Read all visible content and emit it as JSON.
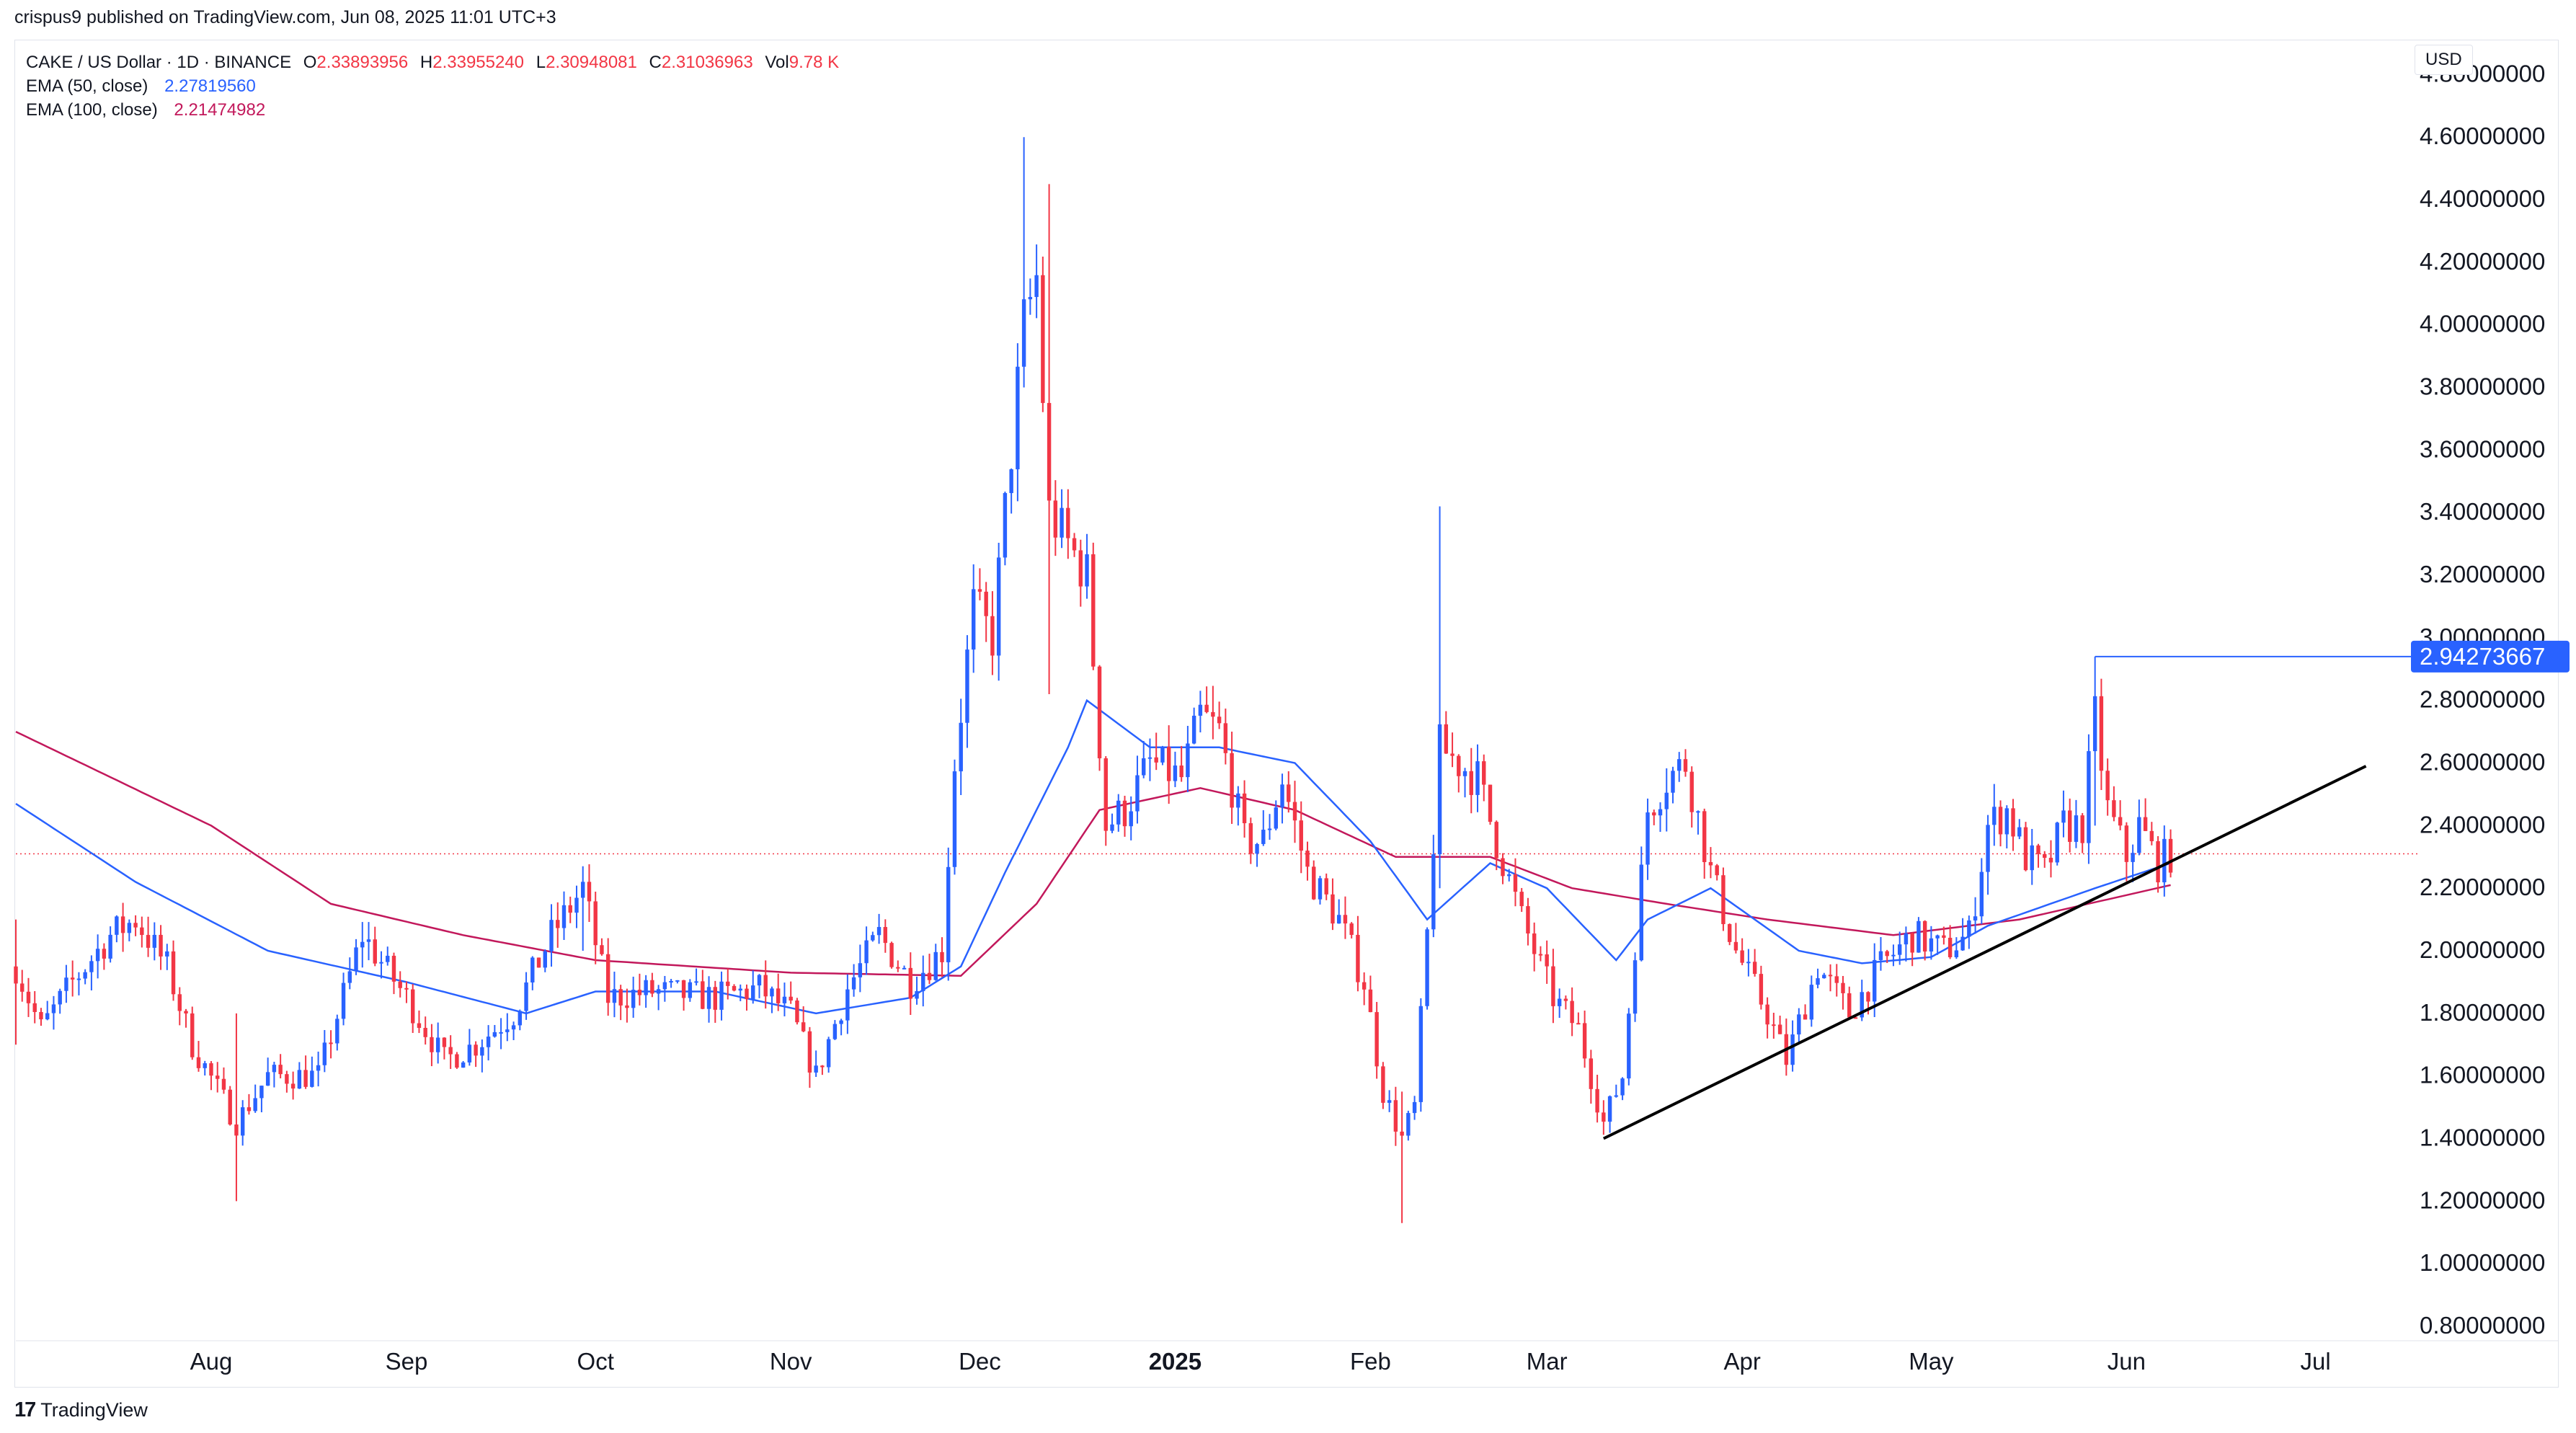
{
  "header": {
    "publish_line": "crispus9 published on TradingView.com, Jun 08, 2025 11:01 UTC+3"
  },
  "legend": {
    "symbol": "CAKE / US Dollar · 1D · BINANCE",
    "ohlc": [
      {
        "key": "O",
        "value": "2.33893956"
      },
      {
        "key": "H",
        "value": "2.33955240"
      },
      {
        "key": "L",
        "value": "2.30948081"
      },
      {
        "key": "C",
        "value": "2.31036963"
      },
      {
        "key": "Vol",
        "value": "9.78 K"
      }
    ],
    "ema50_label": "EMA (50, close)",
    "ema50_value": "2.27819560",
    "ema100_label": "EMA (100, close)",
    "ema100_value": "2.21474982"
  },
  "price_axis": {
    "currency": "USD",
    "current_price_tag": "2.94273667"
  },
  "footer": {
    "logo_mark": "17",
    "logo_text": "TradingView"
  },
  "colors": {
    "up": "#2962ff",
    "down": "#f23645",
    "ema50": "#2962ff",
    "ema100": "#c2185b",
    "trendline": "#000000",
    "price_tag_bg": "#2962ff",
    "last_close_line": "#f23645"
  },
  "chart_data": {
    "type": "candlestick",
    "x_range": [
      "2024-07-01",
      "2025-07-15"
    ],
    "ylim": [
      0.8,
      4.9
    ],
    "y_ticks": [
      "4.80000000",
      "4.60000000",
      "4.40000000",
      "4.20000000",
      "4.00000000",
      "3.80000000",
      "3.60000000",
      "3.40000000",
      "3.20000000",
      "3.00000000",
      "2.80000000",
      "2.60000000",
      "2.40000000",
      "2.20000000",
      "2.00000000",
      "1.80000000",
      "1.60000000",
      "1.40000000",
      "1.20000000",
      "1.00000000",
      "0.80000000"
    ],
    "x_ticks": [
      {
        "label": "Aug",
        "date": "2024-08-01",
        "bold": false
      },
      {
        "label": "Sep",
        "date": "2024-09-01",
        "bold": false
      },
      {
        "label": "Oct",
        "date": "2024-10-01",
        "bold": false
      },
      {
        "label": "Nov",
        "date": "2024-11-01",
        "bold": false
      },
      {
        "label": "Dec",
        "date": "2024-12-01",
        "bold": false
      },
      {
        "label": "2025",
        "date": "2025-01-01",
        "bold": true
      },
      {
        "label": "Feb",
        "date": "2025-02-01",
        "bold": false
      },
      {
        "label": "Mar",
        "date": "2025-03-01",
        "bold": false
      },
      {
        "label": "Apr",
        "date": "2025-04-01",
        "bold": false
      },
      {
        "label": "May",
        "date": "2025-05-01",
        "bold": false
      },
      {
        "label": "Jun",
        "date": "2025-06-01",
        "bold": false
      },
      {
        "label": "Jul",
        "date": "2025-07-01",
        "bold": false
      }
    ],
    "close_anchors": [
      [
        "2024-07-01",
        1.95
      ],
      [
        "2024-07-05",
        1.75
      ],
      [
        "2024-07-10",
        1.9
      ],
      [
        "2024-07-16",
        2.05
      ],
      [
        "2024-07-20",
        2.1
      ],
      [
        "2024-07-25",
        1.95
      ],
      [
        "2024-07-29",
        1.7
      ],
      [
        "2024-08-05",
        1.45
      ],
      [
        "2024-08-10",
        1.6
      ],
      [
        "2024-08-18",
        1.6
      ],
      [
        "2024-08-25",
        2.05
      ],
      [
        "2024-09-01",
        1.85
      ],
      [
        "2024-09-07",
        1.65
      ],
      [
        "2024-09-12",
        1.7
      ],
      [
        "2024-09-18",
        1.8
      ],
      [
        "2024-09-24",
        2.05
      ],
      [
        "2024-09-29",
        2.2
      ],
      [
        "2024-10-03",
        1.85
      ],
      [
        "2024-10-10",
        1.87
      ],
      [
        "2024-10-20",
        1.85
      ],
      [
        "2024-10-27",
        1.88
      ],
      [
        "2024-11-01",
        1.8
      ],
      [
        "2024-11-05",
        1.6
      ],
      [
        "2024-11-10",
        1.88
      ],
      [
        "2024-11-15",
        2.05
      ],
      [
        "2024-11-20",
        1.9
      ],
      [
        "2024-11-25",
        2.0
      ],
      [
        "2024-11-27",
        2.6
      ],
      [
        "2024-11-30",
        3.1
      ],
      [
        "2024-12-03",
        3.0
      ],
      [
        "2024-12-06",
        3.6
      ],
      [
        "2024-12-08",
        4.0
      ],
      [
        "2024-12-10",
        4.15
      ],
      [
        "2024-12-12",
        3.4
      ],
      [
        "2024-12-15",
        3.3
      ],
      [
        "2024-12-18",
        3.2
      ],
      [
        "2024-12-21",
        2.4
      ],
      [
        "2024-12-24",
        2.45
      ],
      [
        "2024-12-28",
        2.6
      ],
      [
        "2025-01-02",
        2.55
      ],
      [
        "2025-01-05",
        2.75
      ],
      [
        "2025-01-08",
        2.7
      ],
      [
        "2025-01-12",
        2.35
      ],
      [
        "2025-01-15",
        2.35
      ],
      [
        "2025-01-18",
        2.55
      ],
      [
        "2025-01-22",
        2.25
      ],
      [
        "2025-01-27",
        2.1
      ],
      [
        "2025-01-31",
        1.9
      ],
      [
        "2025-02-03",
        1.55
      ],
      [
        "2025-02-06",
        1.4
      ],
      [
        "2025-02-08",
        1.5
      ],
      [
        "2025-02-10",
        2.05
      ],
      [
        "2025-02-12",
        2.65
      ],
      [
        "2025-02-15",
        2.6
      ],
      [
        "2025-02-18",
        2.55
      ],
      [
        "2025-02-21",
        2.35
      ],
      [
        "2025-02-25",
        2.1
      ],
      [
        "2025-03-02",
        1.85
      ],
      [
        "2025-03-06",
        1.75
      ],
      [
        "2025-03-10",
        1.45
      ],
      [
        "2025-03-13",
        1.6
      ],
      [
        "2025-03-17",
        2.45
      ],
      [
        "2025-03-20",
        2.55
      ],
      [
        "2025-03-23",
        2.6
      ],
      [
        "2025-03-27",
        2.25
      ],
      [
        "2025-03-31",
        2.0
      ],
      [
        "2025-04-05",
        1.8
      ],
      [
        "2025-04-08",
        1.65
      ],
      [
        "2025-04-13",
        1.95
      ],
      [
        "2025-04-18",
        1.8
      ],
      [
        "2025-04-23",
        1.95
      ],
      [
        "2025-04-28",
        2.05
      ],
      [
        "2025-05-03",
        2.0
      ],
      [
        "2025-05-07",
        2.05
      ],
      [
        "2025-05-10",
        2.4
      ],
      [
        "2025-05-13",
        2.45
      ],
      [
        "2025-05-16",
        2.3
      ],
      [
        "2025-05-19",
        2.25
      ],
      [
        "2025-05-22",
        2.4
      ],
      [
        "2025-05-25",
        2.4
      ],
      [
        "2025-05-27",
        2.75
      ],
      [
        "2025-05-29",
        2.45
      ],
      [
        "2025-06-01",
        2.3
      ],
      [
        "2025-06-03",
        2.4
      ],
      [
        "2025-06-06",
        2.28
      ],
      [
        "2025-06-08",
        2.31
      ]
    ],
    "spikes": [
      {
        "date": "2024-07-01",
        "high": 2.1,
        "low": 1.7
      },
      {
        "date": "2024-08-05",
        "high": 1.8,
        "low": 1.2
      },
      {
        "date": "2024-09-29",
        "high": 2.27,
        "low": 2.0
      },
      {
        "date": "2024-12-08",
        "high": 4.6,
        "low": 3.8
      },
      {
        "date": "2024-12-12",
        "high": 4.45,
        "low": 2.82
      },
      {
        "date": "2025-02-06",
        "high": 1.55,
        "low": 1.13
      },
      {
        "date": "2025-02-12",
        "high": 3.42,
        "low": 2.2
      },
      {
        "date": "2025-05-27",
        "high": 2.94,
        "low": 2.4
      }
    ],
    "ema50_anchors": [
      [
        "2024-07-01",
        2.47
      ],
      [
        "2024-07-20",
        2.22
      ],
      [
        "2024-08-10",
        2.0
      ],
      [
        "2024-09-01",
        1.9
      ],
      [
        "2024-09-20",
        1.8
      ],
      [
        "2024-10-01",
        1.87
      ],
      [
        "2024-10-20",
        1.87
      ],
      [
        "2024-11-05",
        1.8
      ],
      [
        "2024-11-20",
        1.85
      ],
      [
        "2024-11-28",
        1.95
      ],
      [
        "2024-12-05",
        2.25
      ],
      [
        "2024-12-15",
        2.65
      ],
      [
        "2024-12-18",
        2.8
      ],
      [
        "2024-12-28",
        2.65
      ],
      [
        "2025-01-08",
        2.65
      ],
      [
        "2025-01-20",
        2.6
      ],
      [
        "2025-02-01",
        2.35
      ],
      [
        "2025-02-10",
        2.1
      ],
      [
        "2025-02-20",
        2.28
      ],
      [
        "2025-03-01",
        2.2
      ],
      [
        "2025-03-12",
        1.97
      ],
      [
        "2025-03-17",
        2.1
      ],
      [
        "2025-03-27",
        2.2
      ],
      [
        "2025-04-10",
        2.0
      ],
      [
        "2025-04-20",
        1.96
      ],
      [
        "2025-05-01",
        1.98
      ],
      [
        "2025-05-10",
        2.08
      ],
      [
        "2025-05-27",
        2.2
      ],
      [
        "2025-06-08",
        2.28
      ]
    ],
    "ema100_anchors": [
      [
        "2024-07-01",
        2.7
      ],
      [
        "2024-08-01",
        2.4
      ],
      [
        "2024-08-20",
        2.15
      ],
      [
        "2024-09-10",
        2.05
      ],
      [
        "2024-10-01",
        1.97
      ],
      [
        "2024-11-01",
        1.93
      ],
      [
        "2024-11-28",
        1.92
      ],
      [
        "2024-12-10",
        2.15
      ],
      [
        "2024-12-20",
        2.45
      ],
      [
        "2025-01-05",
        2.52
      ],
      [
        "2025-01-20",
        2.45
      ],
      [
        "2025-02-05",
        2.3
      ],
      [
        "2025-02-20",
        2.3
      ],
      [
        "2025-03-05",
        2.2
      ],
      [
        "2025-03-20",
        2.15
      ],
      [
        "2025-04-05",
        2.1
      ],
      [
        "2025-04-25",
        2.05
      ],
      [
        "2025-05-15",
        2.1
      ],
      [
        "2025-06-08",
        2.21
      ]
    ],
    "trendline": {
      "start": [
        "2025-03-10",
        1.4
      ],
      "end": [
        "2025-07-09",
        2.59
      ]
    },
    "last_close": 2.31,
    "marked_high": 2.94
  }
}
